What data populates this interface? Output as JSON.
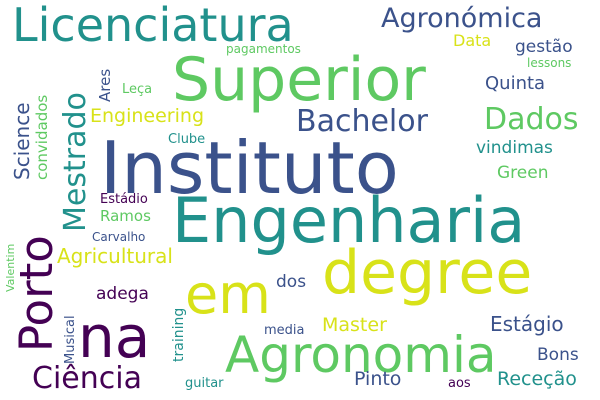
{
  "colors": {
    "background": "#ffffff",
    "palette": [
      "#440154",
      "#3b528b",
      "#21918c",
      "#5ec962",
      "#fde725"
    ]
  },
  "words": [
    "Licenciatura",
    "Agronómica",
    "Superior",
    "Instituto",
    "Engenharia",
    "degree",
    "em",
    "na",
    "Agronomia",
    "Porto",
    "Mestrado",
    "Bachelor",
    "Dados",
    "Ciência",
    "Engineering",
    "Science",
    "Agricultural",
    "Master",
    "Estágio",
    "Receção",
    "Pinto",
    "Bons",
    "adega",
    "dos",
    "Quinta",
    "vindimas",
    "Green",
    "Data",
    "gestão",
    "lessons",
    "pagamentos",
    "convidados",
    "Ares",
    "Leça",
    "Clube",
    "Estádio",
    "Ramos",
    "Carvalho",
    "Valentim",
    "Musical",
    "training",
    "media",
    "guitar",
    "aos"
  ]
}
